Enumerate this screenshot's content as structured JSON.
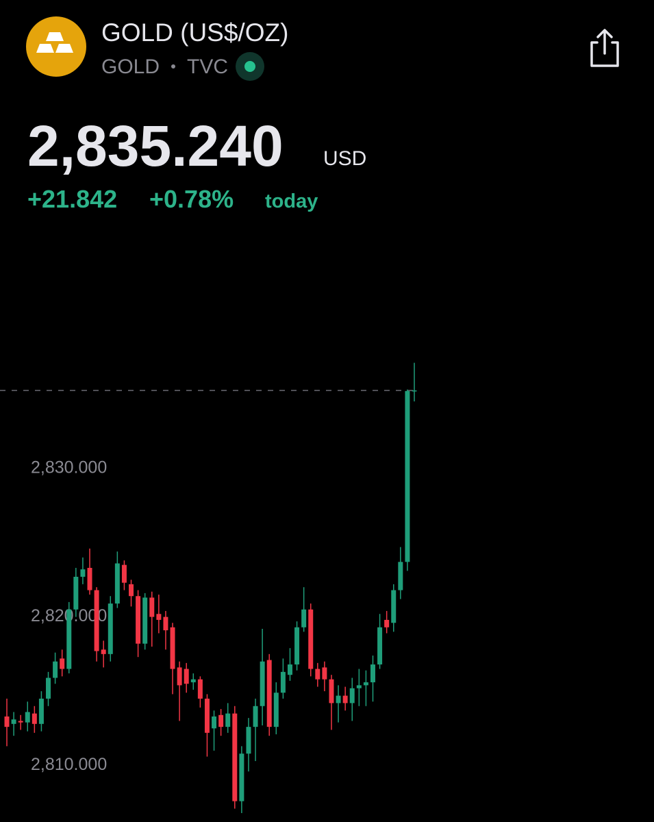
{
  "header": {
    "title": "GOLD (US$/OZ)",
    "symbol": "GOLD",
    "exchange": "TVC",
    "currency": "USD",
    "change": "+21.842",
    "change_pct": "+0.78%",
    "period": "today"
  },
  "chart_data": {
    "type": "candlestick",
    "last": {
      "value": 2835.24,
      "label": "2,835.240"
    },
    "ylim": [
      2806.2,
      2846.3
    ],
    "yticks": [
      {
        "value": 2810,
        "label": "2,810.000"
      },
      {
        "value": 2820,
        "label": "2,820.000"
      },
      {
        "value": 2830,
        "label": "2,830.000"
      }
    ],
    "grid": false,
    "up_color": "#1f9e7a",
    "down_color": "#f23645",
    "open": [
      2813.3,
      2812.8,
      2813.0,
      2812.9,
      2813.5,
      2812.8,
      2814.5,
      2815.9,
      2817.2,
      2816.5,
      2820.5,
      2822.7,
      2823.3,
      2821.8,
      2817.8,
      2817.5,
      2820.9,
      2823.5,
      2822.2,
      2821.4,
      2818.2,
      2821.3,
      2820.2,
      2820.0,
      2819.3,
      2816.6,
      2816.5,
      2815.6,
      2815.8,
      2814.5,
      2812.5,
      2813.4,
      2812.6,
      2813.5,
      2807.6,
      2810.8,
      2812.6,
      2814.0,
      2817.1,
      2812.6,
      2814.9,
      2816.1,
      2816.8,
      2819.3,
      2820.5,
      2816.5,
      2816.6,
      2815.8,
      2814.2,
      2814.7,
      2814.2,
      2815.2,
      2815.4,
      2815.6,
      2816.8,
      2819.8,
      2819.6,
      2821.8,
      2823.7,
      2835.2
    ],
    "high": [
      2814.5,
      2813.6,
      2813.4,
      2814.3,
      2814.0,
      2815.0,
      2816.3,
      2817.6,
      2817.8,
      2821.0,
      2823.3,
      2824.0,
      2824.6,
      2822.0,
      2818.4,
      2821.4,
      2824.4,
      2823.8,
      2822.5,
      2821.8,
      2821.6,
      2821.7,
      2821.5,
      2820.4,
      2819.6,
      2817.0,
      2816.9,
      2816.2,
      2816.0,
      2814.8,
      2813.7,
      2813.8,
      2814.2,
      2814.0,
      2811.3,
      2813.2,
      2814.5,
      2819.2,
      2817.5,
      2815.6,
      2817.2,
      2817.9,
      2819.7,
      2822.0,
      2820.9,
      2816.9,
      2817.0,
      2816.1,
      2815.4,
      2815.3,
      2815.9,
      2816.5,
      2816.4,
      2817.4,
      2820.2,
      2820.4,
      2822.2,
      2824.7,
      2835.3,
      2837.1
    ],
    "low": [
      2811.3,
      2812.0,
      2812.4,
      2812.3,
      2812.2,
      2812.3,
      2814.0,
      2815.5,
      2816.0,
      2816.2,
      2820.0,
      2822.2,
      2821.5,
      2817.0,
      2816.6,
      2817.0,
      2820.6,
      2821.8,
      2820.7,
      2817.3,
      2817.8,
      2818.0,
      2818.9,
      2817.8,
      2814.8,
      2813.0,
      2814.9,
      2815.1,
      2813.9,
      2810.6,
      2811.0,
      2812.0,
      2812.2,
      2807.1,
      2806.8,
      2809.6,
      2810.3,
      2812.7,
      2812.0,
      2812.1,
      2814.5,
      2815.7,
      2816.4,
      2819.0,
      2816.0,
      2815.3,
      2815.0,
      2812.4,
      2812.9,
      2813.7,
      2813.0,
      2814.0,
      2814.0,
      2814.3,
      2816.5,
      2818.9,
      2819.0,
      2821.2,
      2823.1,
      2834.5
    ],
    "close": [
      2812.6,
      2813.1,
      2812.9,
      2813.6,
      2812.8,
      2814.5,
      2815.9,
      2817.0,
      2816.5,
      2820.5,
      2822.7,
      2823.2,
      2821.8,
      2817.7,
      2817.5,
      2820.9,
      2823.6,
      2822.3,
      2821.4,
      2818.2,
      2821.3,
      2820.0,
      2819.8,
      2819.1,
      2816.5,
      2815.4,
      2815.5,
      2815.8,
      2814.5,
      2812.2,
      2813.3,
      2812.6,
      2813.5,
      2807.6,
      2810.8,
      2812.6,
      2814.0,
      2817.0,
      2812.6,
      2814.9,
      2816.3,
      2816.8,
      2819.3,
      2820.5,
      2816.5,
      2815.8,
      2815.8,
      2814.2,
      2814.7,
      2814.2,
      2815.2,
      2815.4,
      2815.6,
      2816.8,
      2819.3,
      2819.3,
      2821.8,
      2823.7,
      2835.2,
      2835.24
    ]
  }
}
